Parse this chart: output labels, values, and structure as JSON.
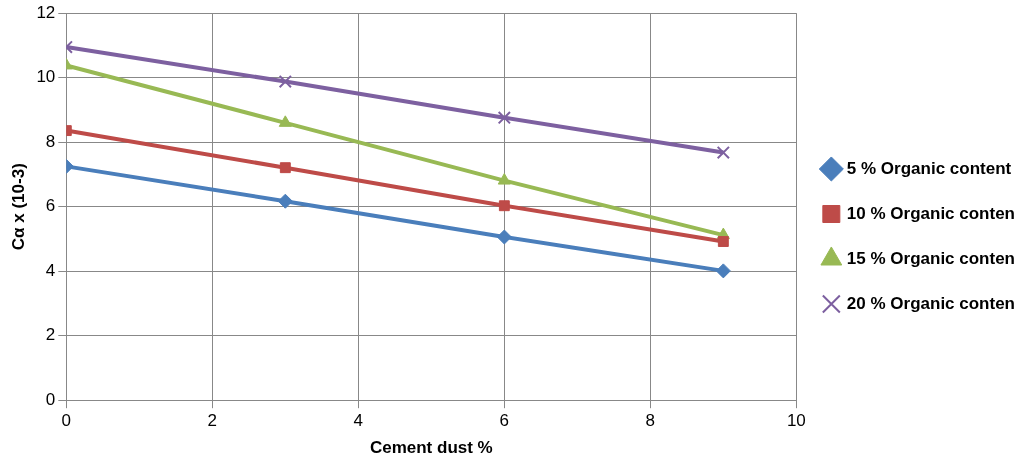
{
  "chart_data": {
    "type": "line",
    "xlabel": "Cement dust %",
    "ylabel": "Cα x (10-3)",
    "x": [
      0,
      3,
      6,
      9
    ],
    "xlim": [
      0,
      10
    ],
    "xticks": [
      0,
      2,
      4,
      6,
      8,
      10
    ],
    "ylim": [
      0,
      12
    ],
    "yticks": [
      0,
      2,
      4,
      6,
      8,
      10,
      12
    ],
    "grid": true,
    "legend": "right",
    "line_style": "solid",
    "series": [
      {
        "name": "5 % Organic content",
        "color": "#4a7ebb",
        "marker": "diamond",
        "values": [
          7.25,
          6.17,
          5.06,
          4.01
        ]
      },
      {
        "name": "10 % Organic conten",
        "color": "#be4b48",
        "marker": "square",
        "values": [
          8.36,
          7.21,
          6.03,
          4.92
        ]
      },
      {
        "name": "15 % Organic conten",
        "color": "#98b954",
        "marker": "triangle",
        "values": [
          10.38,
          8.6,
          6.81,
          5.12
        ]
      },
      {
        "name": "20 % Organic conten",
        "color": "#7d60a0",
        "marker": "cross",
        "values": [
          10.95,
          9.88,
          8.76,
          7.68
        ]
      }
    ]
  }
}
